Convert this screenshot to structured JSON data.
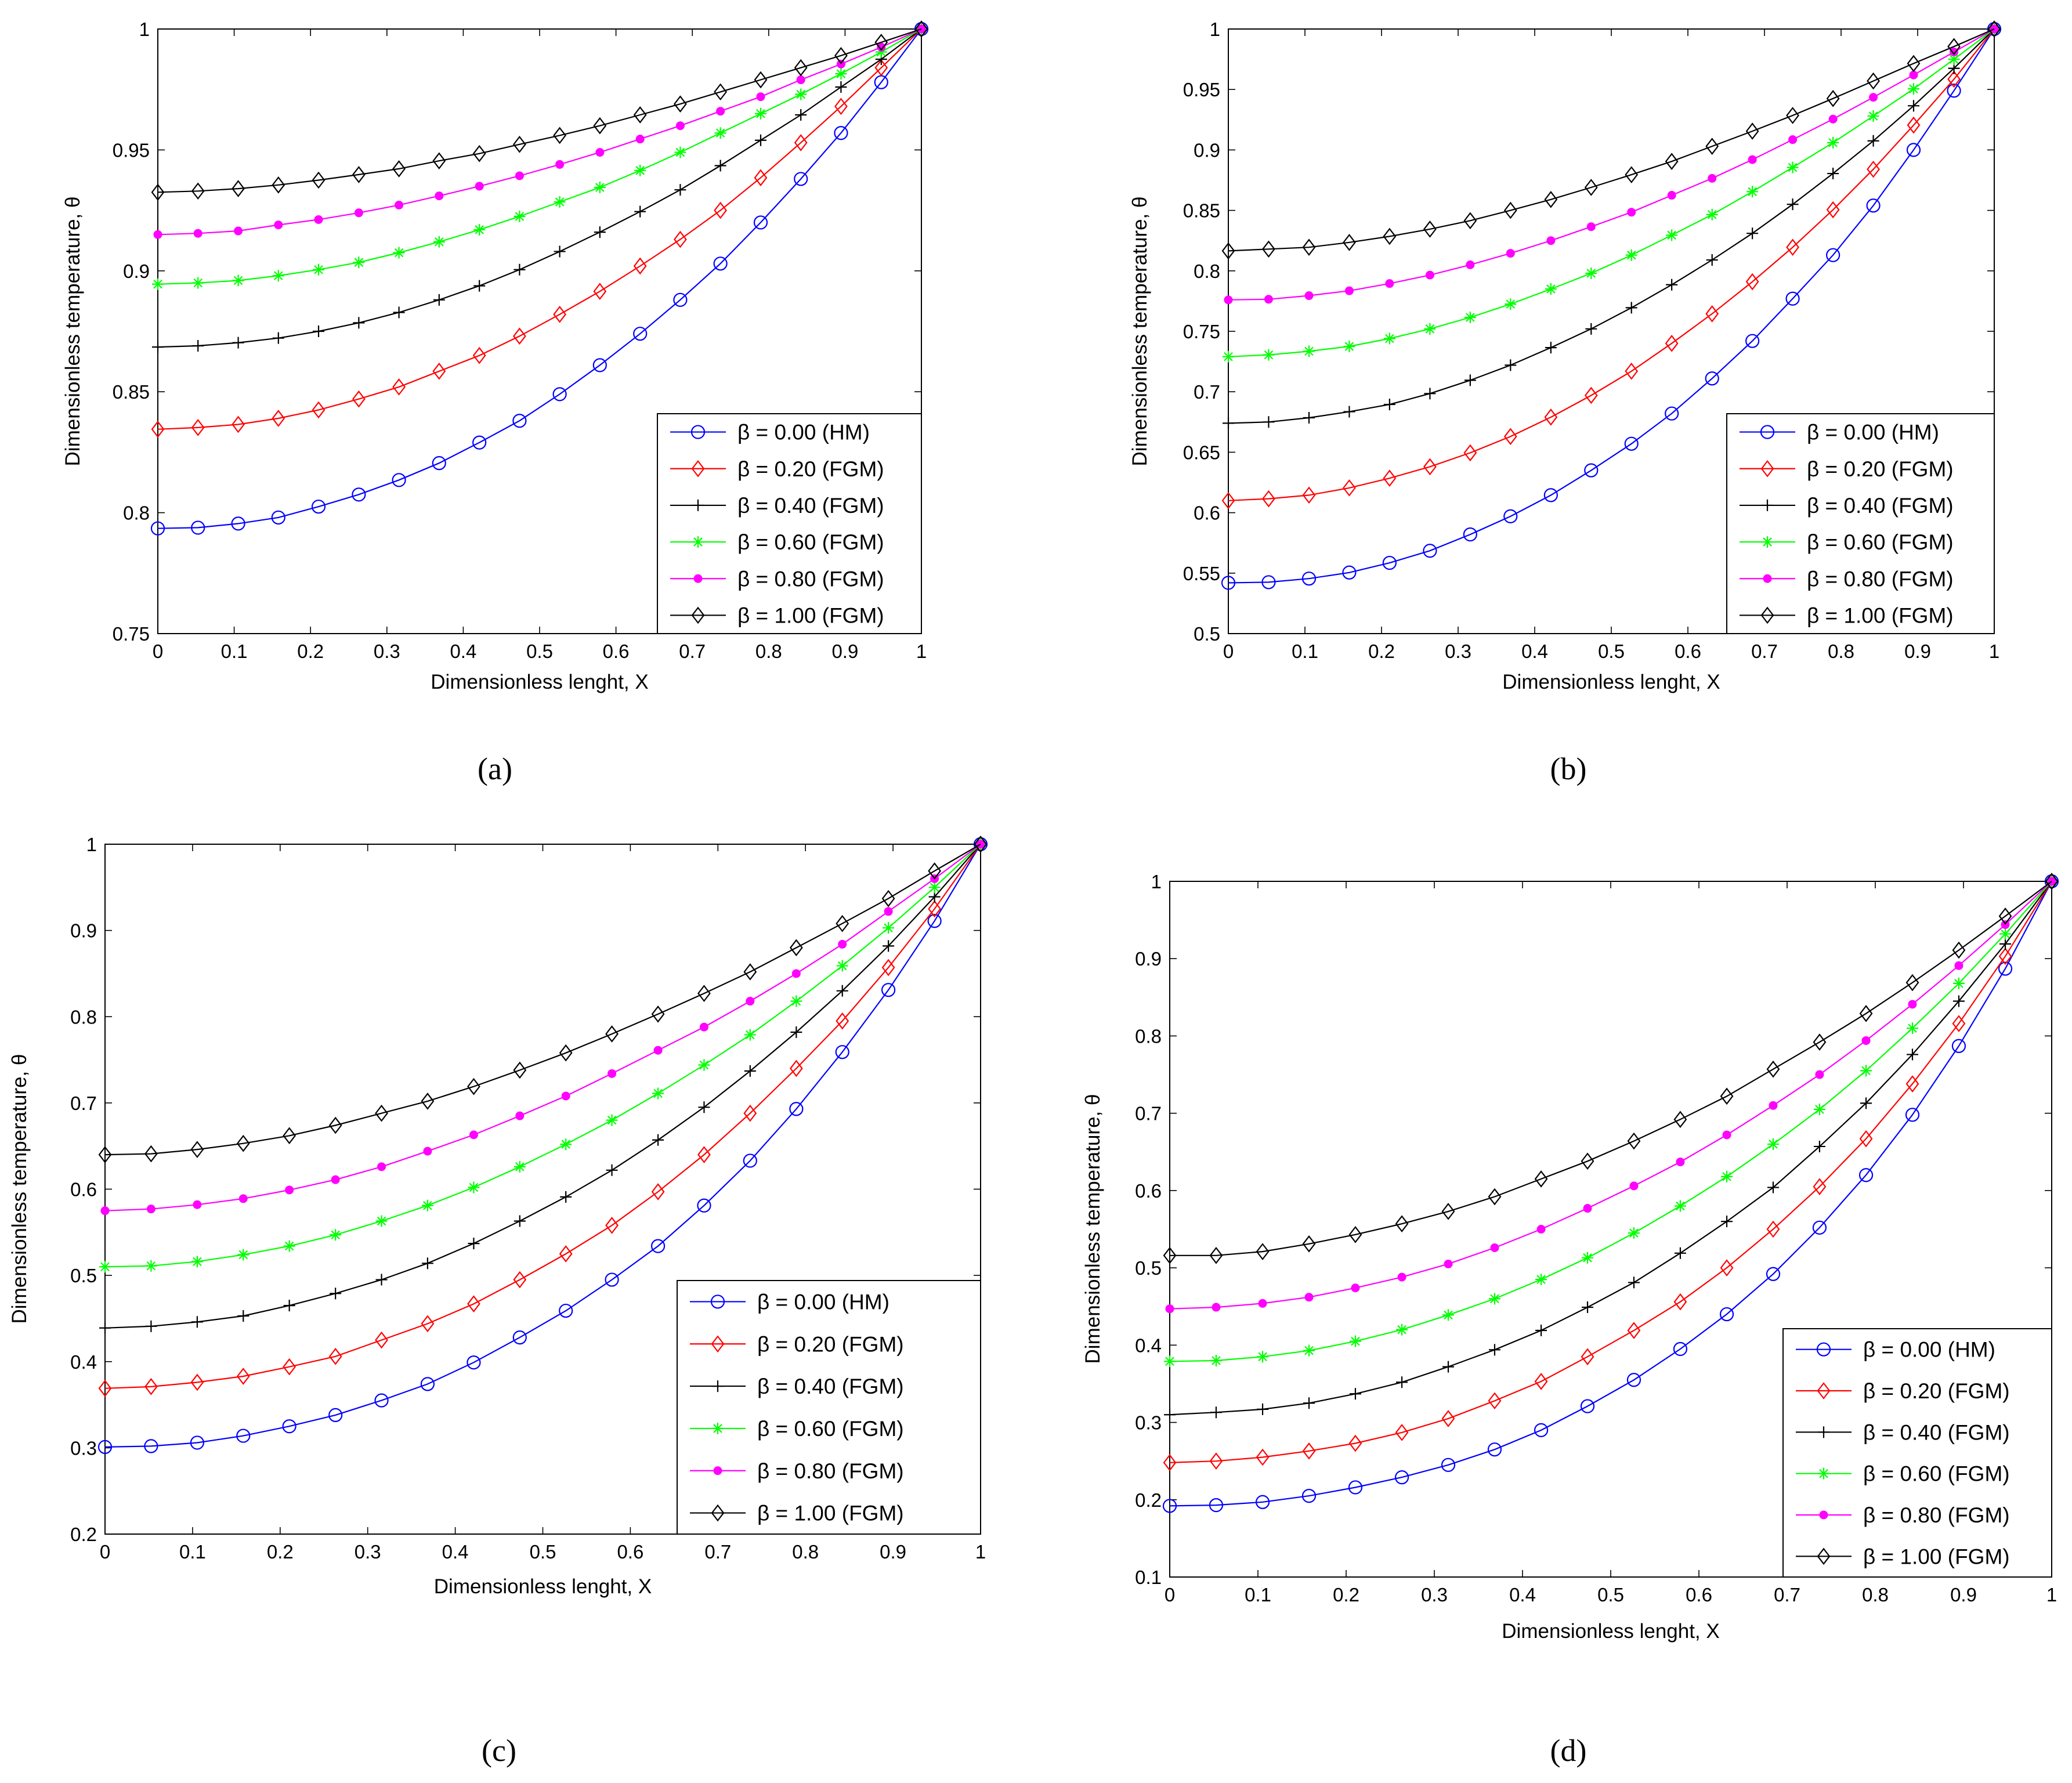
{
  "figure": {
    "panels": [
      {
        "id": "a",
        "caption": "(a)"
      },
      {
        "id": "b",
        "caption": "(b)"
      },
      {
        "id": "c",
        "caption": "(c)"
      },
      {
        "id": "d",
        "caption": "(d)"
      }
    ]
  },
  "colors": {
    "beta_0_00": "#0000ff",
    "beta_0_20": "#ff0000",
    "beta_0_40": "#000000",
    "beta_0_60": "#00ff00",
    "beta_0_80": "#ff00ff",
    "beta_1_00": "#000000",
    "axes": "#000000",
    "background": "#ffffff"
  },
  "chart_data": [
    {
      "panel": "a",
      "type": "line",
      "title": "",
      "xlabel": "Dimensionless lenght, X",
      "ylabel": "Dimensionless temperature, θ",
      "xlim": [
        0,
        1
      ],
      "ylim": [
        0.75,
        1
      ],
      "xticks": [
        "0",
        "0.1",
        "0.2",
        "0.3",
        "0.4",
        "0.5",
        "0.6",
        "0.7",
        "0.8",
        "0.9",
        "1"
      ],
      "yticks": [
        "0.75",
        "0.8",
        "0.85",
        "0.9",
        "0.95",
        "1"
      ],
      "legend_position": "bottom-right",
      "x": [
        0,
        0.0526,
        0.1053,
        0.1579,
        0.2105,
        0.2632,
        0.3158,
        0.3684,
        0.4211,
        0.4737,
        0.5263,
        0.5789,
        0.6316,
        0.6842,
        0.7368,
        0.7895,
        0.8421,
        0.8947,
        0.9474,
        1.0
      ],
      "series": [
        {
          "name": "β = 0.00 (HM)",
          "color": "#0000ff",
          "marker": "circle",
          "values": [
            0.7935,
            0.7938,
            0.7955,
            0.798,
            0.8025,
            0.8075,
            0.8135,
            0.8205,
            0.829,
            0.838,
            0.849,
            0.861,
            0.874,
            0.888,
            0.903,
            0.92,
            0.938,
            0.957,
            0.978,
            1.0
          ]
        },
        {
          "name": "β = 0.20 (FGM)",
          "color": "#ff0000",
          "marker": "diamond",
          "values": [
            0.8345,
            0.8352,
            0.8365,
            0.839,
            0.8425,
            0.847,
            0.852,
            0.8585,
            0.865,
            0.873,
            0.882,
            0.8915,
            0.902,
            0.913,
            0.925,
            0.9385,
            0.953,
            0.968,
            0.984,
            1.0
          ]
        },
        {
          "name": "β = 0.40 (FGM)",
          "color": "#000000",
          "marker": "plus",
          "values": [
            0.8685,
            0.869,
            0.8703,
            0.8722,
            0.875,
            0.8785,
            0.8828,
            0.888,
            0.8938,
            0.9005,
            0.908,
            0.916,
            0.9245,
            0.9335,
            0.9435,
            0.954,
            0.9645,
            0.976,
            0.9875,
            1.0
          ]
        },
        {
          "name": "β = 0.60 (FGM)",
          "color": "#00ff00",
          "marker": "asterisk",
          "values": [
            0.8945,
            0.895,
            0.896,
            0.898,
            0.9005,
            0.9035,
            0.9075,
            0.912,
            0.917,
            0.9225,
            0.9285,
            0.9345,
            0.9415,
            0.949,
            0.957,
            0.965,
            0.973,
            0.9815,
            0.9905,
            1.0
          ]
        },
        {
          "name": "β = 0.80 (FGM)",
          "color": "#ff00ff",
          "marker": "dot",
          "values": [
            0.915,
            0.9155,
            0.9165,
            0.919,
            0.9212,
            0.924,
            0.9272,
            0.931,
            0.935,
            0.9393,
            0.944,
            0.949,
            0.9545,
            0.96,
            0.966,
            0.972,
            0.979,
            0.9855,
            0.9925,
            1.0
          ]
        },
        {
          "name": "β = 1.00 (FGM)",
          "color": "#000000",
          "marker": "diamond",
          "values": [
            0.9325,
            0.933,
            0.934,
            0.9355,
            0.9375,
            0.9398,
            0.9422,
            0.9455,
            0.9485,
            0.9523,
            0.956,
            0.96,
            0.9645,
            0.969,
            0.974,
            0.979,
            0.984,
            0.989,
            0.9945,
            1.0
          ]
        }
      ]
    },
    {
      "panel": "b",
      "type": "line",
      "title": "",
      "xlabel": "Dimensionless lenght, X",
      "ylabel": "Dimensionless temperature, θ",
      "xlim": [
        0,
        1
      ],
      "ylim": [
        0.5,
        1
      ],
      "xticks": [
        "0",
        "0.1",
        "0.2",
        "0.3",
        "0.4",
        "0.5",
        "0.6",
        "0.7",
        "0.8",
        "0.9",
        "1"
      ],
      "yticks": [
        "0.5",
        "0.55",
        "0.6",
        "0.65",
        "0.7",
        "0.75",
        "0.8",
        "0.85",
        "0.9",
        "0.95",
        "1"
      ],
      "legend_position": "bottom-right",
      "x": [
        0,
        0.0526,
        0.1053,
        0.1579,
        0.2105,
        0.2632,
        0.3158,
        0.3684,
        0.4211,
        0.4737,
        0.5263,
        0.5789,
        0.6316,
        0.6842,
        0.7368,
        0.7895,
        0.8421,
        0.8947,
        0.9474,
        1.0
      ],
      "series": [
        {
          "name": "β = 0.00 (HM)",
          "color": "#0000ff",
          "marker": "circle",
          "values": [
            0.542,
            0.5425,
            0.5455,
            0.5505,
            0.5585,
            0.5685,
            0.582,
            0.597,
            0.6145,
            0.635,
            0.657,
            0.682,
            0.711,
            0.742,
            0.777,
            0.813,
            0.854,
            0.9,
            0.949,
            1.0
          ]
        },
        {
          "name": "β = 0.20 (FGM)",
          "color": "#ff0000",
          "marker": "diamond",
          "values": [
            0.61,
            0.6115,
            0.6145,
            0.6205,
            0.6285,
            0.638,
            0.6495,
            0.663,
            0.679,
            0.697,
            0.717,
            0.74,
            0.7645,
            0.791,
            0.8195,
            0.8505,
            0.884,
            0.9205,
            0.9585,
            1.0
          ]
        },
        {
          "name": "β = 0.40 (FGM)",
          "color": "#000000",
          "marker": "plus",
          "values": [
            0.674,
            0.675,
            0.6785,
            0.6835,
            0.6895,
            0.6985,
            0.7095,
            0.722,
            0.7365,
            0.752,
            0.7695,
            0.7885,
            0.809,
            0.831,
            0.855,
            0.8805,
            0.9075,
            0.9365,
            0.9675,
            1.0
          ]
        },
        {
          "name": "β = 0.60 (FGM)",
          "color": "#00ff00",
          "marker": "asterisk",
          "values": [
            0.729,
            0.7305,
            0.7335,
            0.7375,
            0.744,
            0.752,
            0.7615,
            0.7725,
            0.785,
            0.798,
            0.813,
            0.8295,
            0.8465,
            0.8655,
            0.8855,
            0.906,
            0.928,
            0.9505,
            0.975,
            1.0
          ]
        },
        {
          "name": "β = 0.80 (FGM)",
          "color": "#ff00ff",
          "marker": "dot",
          "values": [
            0.776,
            0.7765,
            0.7795,
            0.7835,
            0.7895,
            0.7965,
            0.805,
            0.8145,
            0.825,
            0.8365,
            0.8485,
            0.8625,
            0.8765,
            0.892,
            0.9085,
            0.9255,
            0.9435,
            0.962,
            0.981,
            1.0
          ]
        },
        {
          "name": "β = 1.00 (FGM)",
          "color": "#000000",
          "marker": "diamond",
          "values": [
            0.8165,
            0.818,
            0.8195,
            0.8235,
            0.8285,
            0.8345,
            0.8415,
            0.85,
            0.859,
            0.869,
            0.8795,
            0.8905,
            0.903,
            0.9155,
            0.9285,
            0.9425,
            0.957,
            0.9715,
            0.9855,
            1.0
          ]
        }
      ]
    },
    {
      "panel": "c",
      "type": "line",
      "title": "",
      "xlabel": "Dimensionless lenght, X",
      "ylabel": "Dimensionless temperature, θ",
      "xlim": [
        0,
        1
      ],
      "ylim": [
        0.2,
        1
      ],
      "xticks": [
        "0",
        "0.1",
        "0.2",
        "0.3",
        "0.4",
        "0.5",
        "0.6",
        "0.7",
        "0.8",
        "0.9",
        "1"
      ],
      "yticks": [
        "0.2",
        "0.3",
        "0.4",
        "0.5",
        "0.6",
        "0.7",
        "0.8",
        "0.9",
        "1"
      ],
      "legend_position": "bottom-right",
      "x": [
        0,
        0.0526,
        0.1053,
        0.1579,
        0.2105,
        0.2632,
        0.3158,
        0.3684,
        0.4211,
        0.4737,
        0.5263,
        0.5789,
        0.6316,
        0.6842,
        0.7368,
        0.7895,
        0.8421,
        0.8947,
        0.9474,
        1.0
      ],
      "series": [
        {
          "name": "β = 0.00 (HM)",
          "color": "#0000ff",
          "marker": "circle",
          "values": [
            0.301,
            0.302,
            0.306,
            0.314,
            0.325,
            0.338,
            0.355,
            0.374,
            0.399,
            0.428,
            0.459,
            0.495,
            0.534,
            0.581,
            0.633,
            0.693,
            0.759,
            0.831,
            0.911,
            1.0
          ]
        },
        {
          "name": "β = 0.20 (FGM)",
          "color": "#ff0000",
          "marker": "diamond",
          "values": [
            0.369,
            0.371,
            0.376,
            0.383,
            0.394,
            0.406,
            0.425,
            0.444,
            0.467,
            0.495,
            0.525,
            0.558,
            0.597,
            0.64,
            0.688,
            0.74,
            0.795,
            0.857,
            0.925,
            1.0
          ]
        },
        {
          "name": "β = 0.40 (FGM)",
          "color": "#000000",
          "marker": "plus",
          "values": [
            0.439,
            0.441,
            0.446,
            0.453,
            0.465,
            0.479,
            0.495,
            0.514,
            0.537,
            0.563,
            0.591,
            0.622,
            0.657,
            0.695,
            0.737,
            0.782,
            0.83,
            0.882,
            0.939,
            1.0
          ]
        },
        {
          "name": "β = 0.60 (FGM)",
          "color": "#00ff00",
          "marker": "asterisk",
          "values": [
            0.51,
            0.511,
            0.516,
            0.524,
            0.534,
            0.547,
            0.563,
            0.581,
            0.602,
            0.626,
            0.652,
            0.68,
            0.711,
            0.744,
            0.779,
            0.818,
            0.859,
            0.903,
            0.95,
            1.0
          ]
        },
        {
          "name": "β = 0.80 (FGM)",
          "color": "#ff00ff",
          "marker": "dot",
          "values": [
            0.575,
            0.577,
            0.582,
            0.589,
            0.599,
            0.611,
            0.626,
            0.644,
            0.663,
            0.685,
            0.708,
            0.734,
            0.761,
            0.788,
            0.818,
            0.85,
            0.884,
            0.922,
            0.96,
            1.0
          ]
        },
        {
          "name": "β = 1.00 (FGM)",
          "color": "#000000",
          "marker": "diamond",
          "values": [
            0.64,
            0.641,
            0.646,
            0.653,
            0.662,
            0.674,
            0.688,
            0.702,
            0.719,
            0.738,
            0.758,
            0.78,
            0.803,
            0.827,
            0.852,
            0.88,
            0.908,
            0.937,
            0.969,
            1.0
          ]
        }
      ]
    },
    {
      "panel": "d",
      "type": "line",
      "title": "",
      "xlabel": "Dimensionless lenght, X",
      "ylabel": "Dimensionless temperature, θ",
      "xlim": [
        0,
        1
      ],
      "ylim": [
        0.1,
        1
      ],
      "xticks": [
        "0",
        "0.1",
        "0.2",
        "0.3",
        "0.4",
        "0.5",
        "0.6",
        "0.7",
        "0.8",
        "0.9",
        "1"
      ],
      "yticks": [
        "0.1",
        "0.2",
        "0.3",
        "0.4",
        "0.5",
        "0.6",
        "0.7",
        "0.8",
        "0.9",
        "1"
      ],
      "legend_position": "bottom-right",
      "x": [
        0,
        0.0526,
        0.1053,
        0.1579,
        0.2105,
        0.2632,
        0.3158,
        0.3684,
        0.4211,
        0.4737,
        0.5263,
        0.5789,
        0.6316,
        0.6842,
        0.7368,
        0.7895,
        0.8421,
        0.8947,
        0.9474,
        1.0
      ],
      "series": [
        {
          "name": "β = 0.00 (HM)",
          "color": "#0000ff",
          "marker": "circle",
          "values": [
            0.192,
            0.193,
            0.197,
            0.205,
            0.216,
            0.229,
            0.245,
            0.265,
            0.29,
            0.321,
            0.355,
            0.395,
            0.44,
            0.492,
            0.552,
            0.62,
            0.698,
            0.787,
            0.887,
            1.0
          ]
        },
        {
          "name": "β = 0.20 (FGM)",
          "color": "#ff0000",
          "marker": "diamond",
          "values": [
            0.248,
            0.25,
            0.255,
            0.263,
            0.273,
            0.287,
            0.305,
            0.328,
            0.353,
            0.385,
            0.419,
            0.456,
            0.5,
            0.55,
            0.605,
            0.667,
            0.738,
            0.816,
            0.903,
            1.0
          ]
        },
        {
          "name": "β = 0.40 (FGM)",
          "color": "#000000",
          "marker": "plus",
          "values": [
            0.31,
            0.313,
            0.317,
            0.325,
            0.337,
            0.352,
            0.372,
            0.394,
            0.419,
            0.449,
            0.481,
            0.519,
            0.56,
            0.604,
            0.657,
            0.713,
            0.776,
            0.845,
            0.919,
            1.0
          ]
        },
        {
          "name": "β = 0.60 (FGM)",
          "color": "#00ff00",
          "marker": "asterisk",
          "values": [
            0.379,
            0.38,
            0.385,
            0.393,
            0.405,
            0.42,
            0.439,
            0.46,
            0.485,
            0.513,
            0.545,
            0.58,
            0.618,
            0.66,
            0.705,
            0.755,
            0.81,
            0.868,
            0.932,
            1.0
          ]
        },
        {
          "name": "β = 0.80 (FGM)",
          "color": "#ff00ff",
          "marker": "dot",
          "values": [
            0.447,
            0.449,
            0.454,
            0.462,
            0.474,
            0.488,
            0.505,
            0.526,
            0.55,
            0.577,
            0.606,
            0.637,
            0.672,
            0.71,
            0.75,
            0.794,
            0.841,
            0.891,
            0.944,
            1.0
          ]
        },
        {
          "name": "β = 1.00 (FGM)",
          "color": "#000000",
          "marker": "diamond",
          "values": [
            0.516,
            0.516,
            0.521,
            0.531,
            0.543,
            0.557,
            0.573,
            0.592,
            0.615,
            0.638,
            0.664,
            0.692,
            0.722,
            0.757,
            0.792,
            0.829,
            0.869,
            0.911,
            0.955,
            1.0
          ]
        }
      ]
    }
  ]
}
